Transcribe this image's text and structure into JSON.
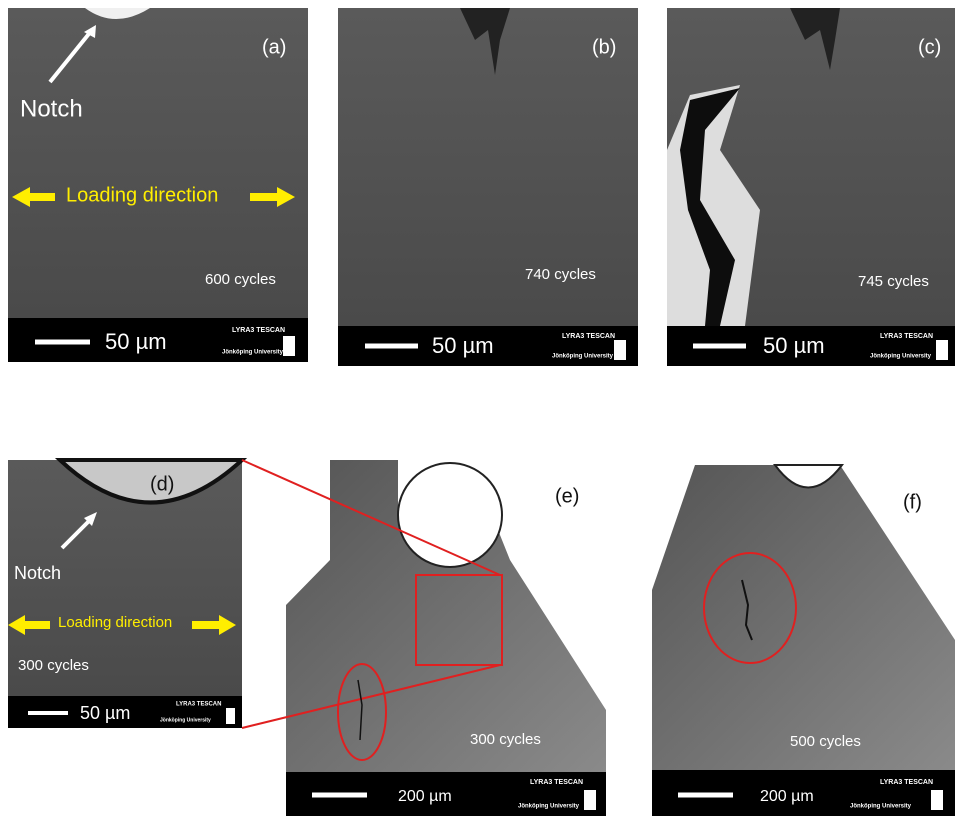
{
  "panels": [
    {
      "label": "(a)",
      "notch": "Notch",
      "loading": "Loading direction",
      "cycles": "600 cycles",
      "scale_bar": "50 µm",
      "microscope": "LYRA3 TESCAN",
      "institution": "Jönköping University"
    },
    {
      "label": "(b)",
      "cycles": "740 cycles",
      "scale_bar": "50 µm",
      "microscope": "LYRA3 TESCAN",
      "institution": "Jönköping University"
    },
    {
      "label": "(c)",
      "cycles": "745 cycles",
      "scale_bar": "50 µm",
      "microscope": "LYRA3 TESCAN",
      "institution": "Jönköping University"
    },
    {
      "label": "(d)",
      "notch": "Notch",
      "loading": "Loading direction",
      "cycles": "300 cycles",
      "scale_bar": "50 µm",
      "microscope": "LYRA3 TESCAN",
      "institution": "Jönköping University"
    },
    {
      "label": "(e)",
      "cycles": "300 cycles",
      "scale_bar": "200 µm",
      "microscope": "LYRA3 TESCAN",
      "institution": "Jönköping University"
    },
    {
      "label": "(f)",
      "cycles": "500 cycles",
      "scale_bar": "200 µm",
      "microscope": "LYRA3 TESCAN",
      "institution": "Jönköping University"
    }
  ]
}
